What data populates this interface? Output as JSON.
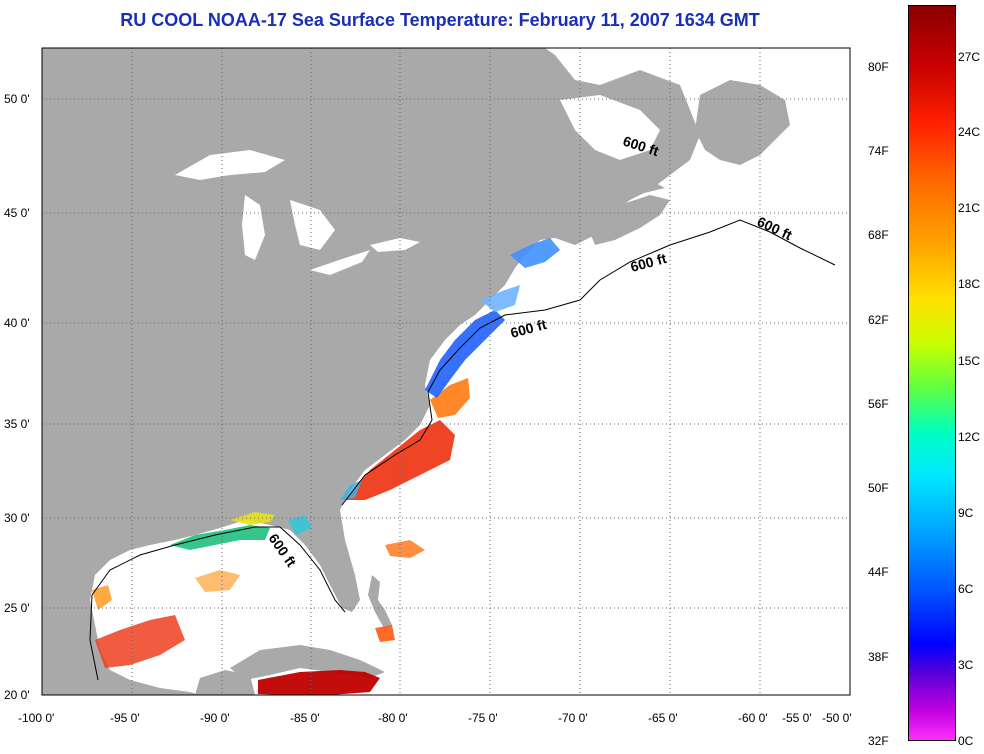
{
  "title": "RU COOL  NOAA-17  Sea Surface Temperature:  February 11, 2007 1634 GMT",
  "map": {
    "lon_ticks": [
      "-100 0'",
      "-95 0'",
      "-90 0'",
      "-85 0'",
      "-80 0'",
      "-75 0'",
      "-70 0'",
      "-65 0'",
      "-60 0'",
      "-55 0'",
      "-50 0'"
    ],
    "lat_ticks": [
      "50 0'",
      "45 0'",
      "40 0'",
      "35 0'",
      "30 0'",
      "25 0'",
      "20 0'"
    ],
    "contour_label": "600 ft",
    "colors": {
      "land": "#a9a9a9",
      "ocean": "#ffffff",
      "grid": "#666666"
    }
  },
  "colorbar": {
    "fahrenheit": [
      "80F",
      "74F",
      "68F",
      "62F",
      "56F",
      "50F",
      "44F",
      "38F",
      "32F"
    ],
    "celsius": [
      "27C",
      "24C",
      "21C",
      "18C",
      "15C",
      "12C",
      "9C",
      "6C",
      "3C",
      "0C"
    ]
  }
}
